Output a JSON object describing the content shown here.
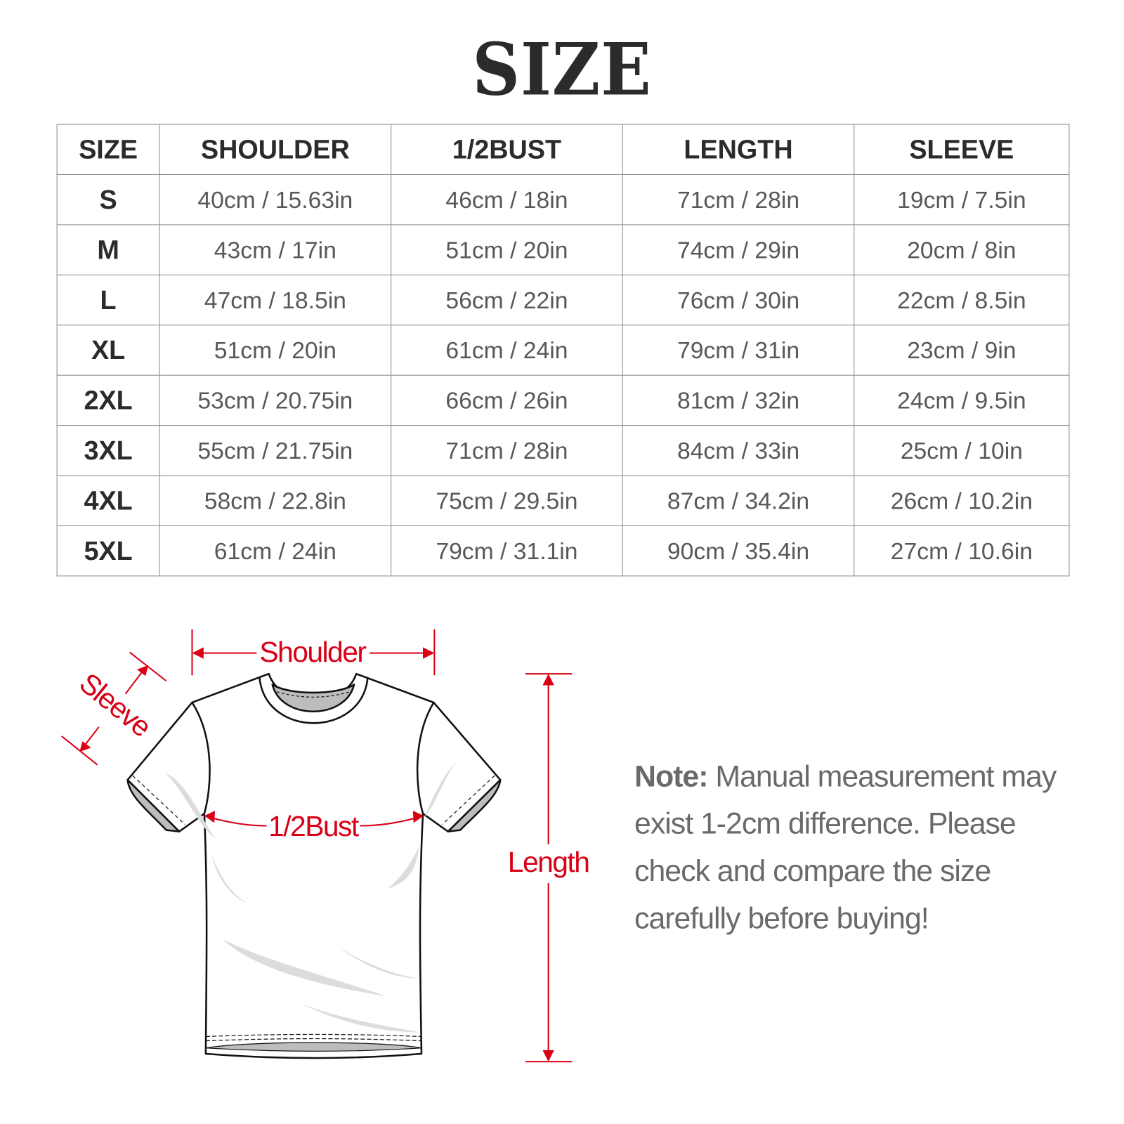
{
  "title": "SIZE",
  "table": {
    "headers": [
      "SIZE",
      "SHOULDER",
      "1/2BUST",
      "LENGTH",
      "SLEEVE"
    ],
    "rows": [
      [
        "S",
        "40cm / 15.63in",
        "46cm / 18in",
        "71cm / 28in",
        "19cm / 7.5in"
      ],
      [
        "M",
        "43cm / 17in",
        "51cm / 20in",
        "74cm / 29in",
        "20cm / 8in"
      ],
      [
        "L",
        "47cm / 18.5in",
        "56cm / 22in",
        "76cm / 30in",
        "22cm / 8.5in"
      ],
      [
        "XL",
        "51cm / 20in",
        "61cm / 24in",
        "79cm / 31in",
        "23cm / 9in"
      ],
      [
        "2XL",
        "53cm / 20.75in",
        "66cm / 26in",
        "81cm / 32in",
        "24cm / 9.5in"
      ],
      [
        "3XL",
        "55cm / 21.75in",
        "71cm / 28in",
        "84cm / 33in",
        "25cm / 10in"
      ],
      [
        "4XL",
        "58cm / 22.8in",
        "75cm / 29.5in",
        "87cm / 34.2in",
        "26cm / 10.2in"
      ],
      [
        "5XL",
        "61cm / 24in",
        "79cm / 31.1in",
        "90cm / 35.4in",
        "27cm / 10.6in"
      ]
    ]
  },
  "diagram": {
    "shoulder_label": "Shoulder",
    "sleeve_label": "Sleeve",
    "bust_label": "1/2Bust",
    "length_label": "Length",
    "accent_color": "#d90016"
  },
  "note": {
    "label": "Note:",
    "text": " Manual measurement may exist 1-2cm difference. Please check and compare the size carefully before buying!"
  }
}
